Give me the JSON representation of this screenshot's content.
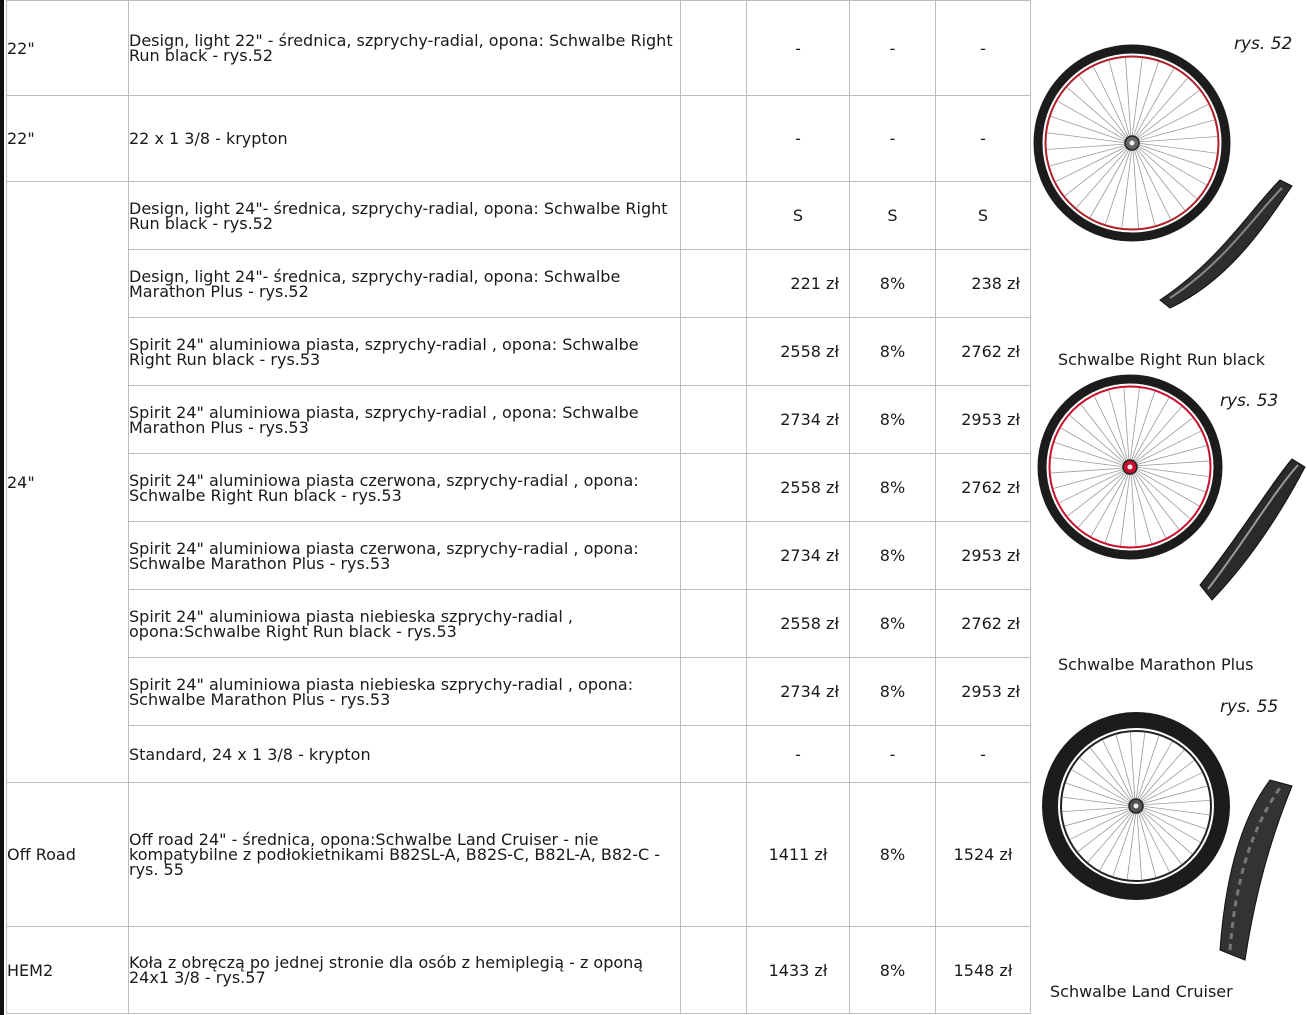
{
  "rows": [
    {
      "size": "22\"",
      "desc": "Design, light 22\" - średnica,  szprychy-radial, opona: Schwalbe Right Run black - rys.52",
      "net": "-",
      "vat": "-",
      "gross": "-"
    },
    {
      "size": "22\"",
      "desc": "22 x 1 3/8 - krypton",
      "net": "-",
      "vat": "-",
      "gross": "-"
    },
    {
      "size": "24\"",
      "desc": "Design, light 24\"- średnica,  szprychy-radial, opona: Schwalbe Right Run black - rys.52",
      "net": "S",
      "vat": "S",
      "gross": "S"
    },
    {
      "desc": "Design, light 24\"- średnica,  szprychy-radial, opona: Schwalbe Marathon Plus - rys.52",
      "net": "221 zł",
      "vat": "8%",
      "gross": "238 zł"
    },
    {
      "desc": "Spirit 24\" aluminiowa piasta, szprychy-radial , opona: Schwalbe Right Run black - rys.53",
      "net": "2558 zł",
      "vat": "8%",
      "gross": "2762 zł"
    },
    {
      "desc": "Spirit 24\" aluminiowa piasta, szprychy-radial , opona: Schwalbe Marathon Plus  - rys.53",
      "net": "2734 zł",
      "vat": "8%",
      "gross": "2953 zł"
    },
    {
      "desc": "Spirit 24\" aluminiowa piasta czerwona, szprychy-radial , opona:  Schwalbe Right Run black  - rys.53",
      "net": "2558 zł",
      "vat": "8%",
      "gross": "2762 zł"
    },
    {
      "desc": "Spirit 24\" aluminiowa piasta czerwona, szprychy-radial , opona: Schwalbe Marathon Plus  - rys.53",
      "net": "2734 zł",
      "vat": "8%",
      "gross": "2953 zł"
    },
    {
      "desc": "Spirit 24\" aluminiowa piasta niebieska szprychy-radial , opona:Schwalbe Right Run black  - rys.53",
      "net": "2558 zł",
      "vat": "8%",
      "gross": "2762 zł"
    },
    {
      "desc": "Spirit 24\" aluminiowa piasta niebieska szprychy-radial , opona: Schwalbe Marathon Plus  - rys.53",
      "net": "2734 zł",
      "vat": "8%",
      "gross": "2953 zł"
    },
    {
      "desc": "Standard, 24 x 1 3/8 - krypton",
      "net": "-",
      "vat": "-",
      "gross": "-"
    },
    {
      "size": "Off Road",
      "desc": "Off road 24\" - średnica,  opona:Schwalbe Land Cruiser - nie kompatybilne z podłokietnikami B82SL-A, B82S-C, B82L-A, B82-C -  rys. 55",
      "net": "1411 zł",
      "vat": "8%",
      "gross": "1524 zł"
    },
    {
      "size": "HEM2",
      "desc": "Koła z obręczą po jednej stronie dla osób z hemiplegią -  z oponą 24x1 3/8 - rys.57",
      "net": "1433 zł",
      "vat": "8%",
      "gross": "1548 zł"
    }
  ],
  "figures": [
    {
      "ref": "rys. 52",
      "caption": "Schwalbe Right Run black",
      "hub_color": "#666666",
      "rim_accent": "#b0202a"
    },
    {
      "ref": "rys. 53",
      "caption": "Schwalbe Marathon Plus",
      "hub_color": "#c8102e",
      "rim_accent": "#c8102e"
    },
    {
      "ref": "rys. 55",
      "caption": "Schwalbe Land Cruiser",
      "hub_color": "#555555",
      "rim_accent": "#222222"
    }
  ]
}
